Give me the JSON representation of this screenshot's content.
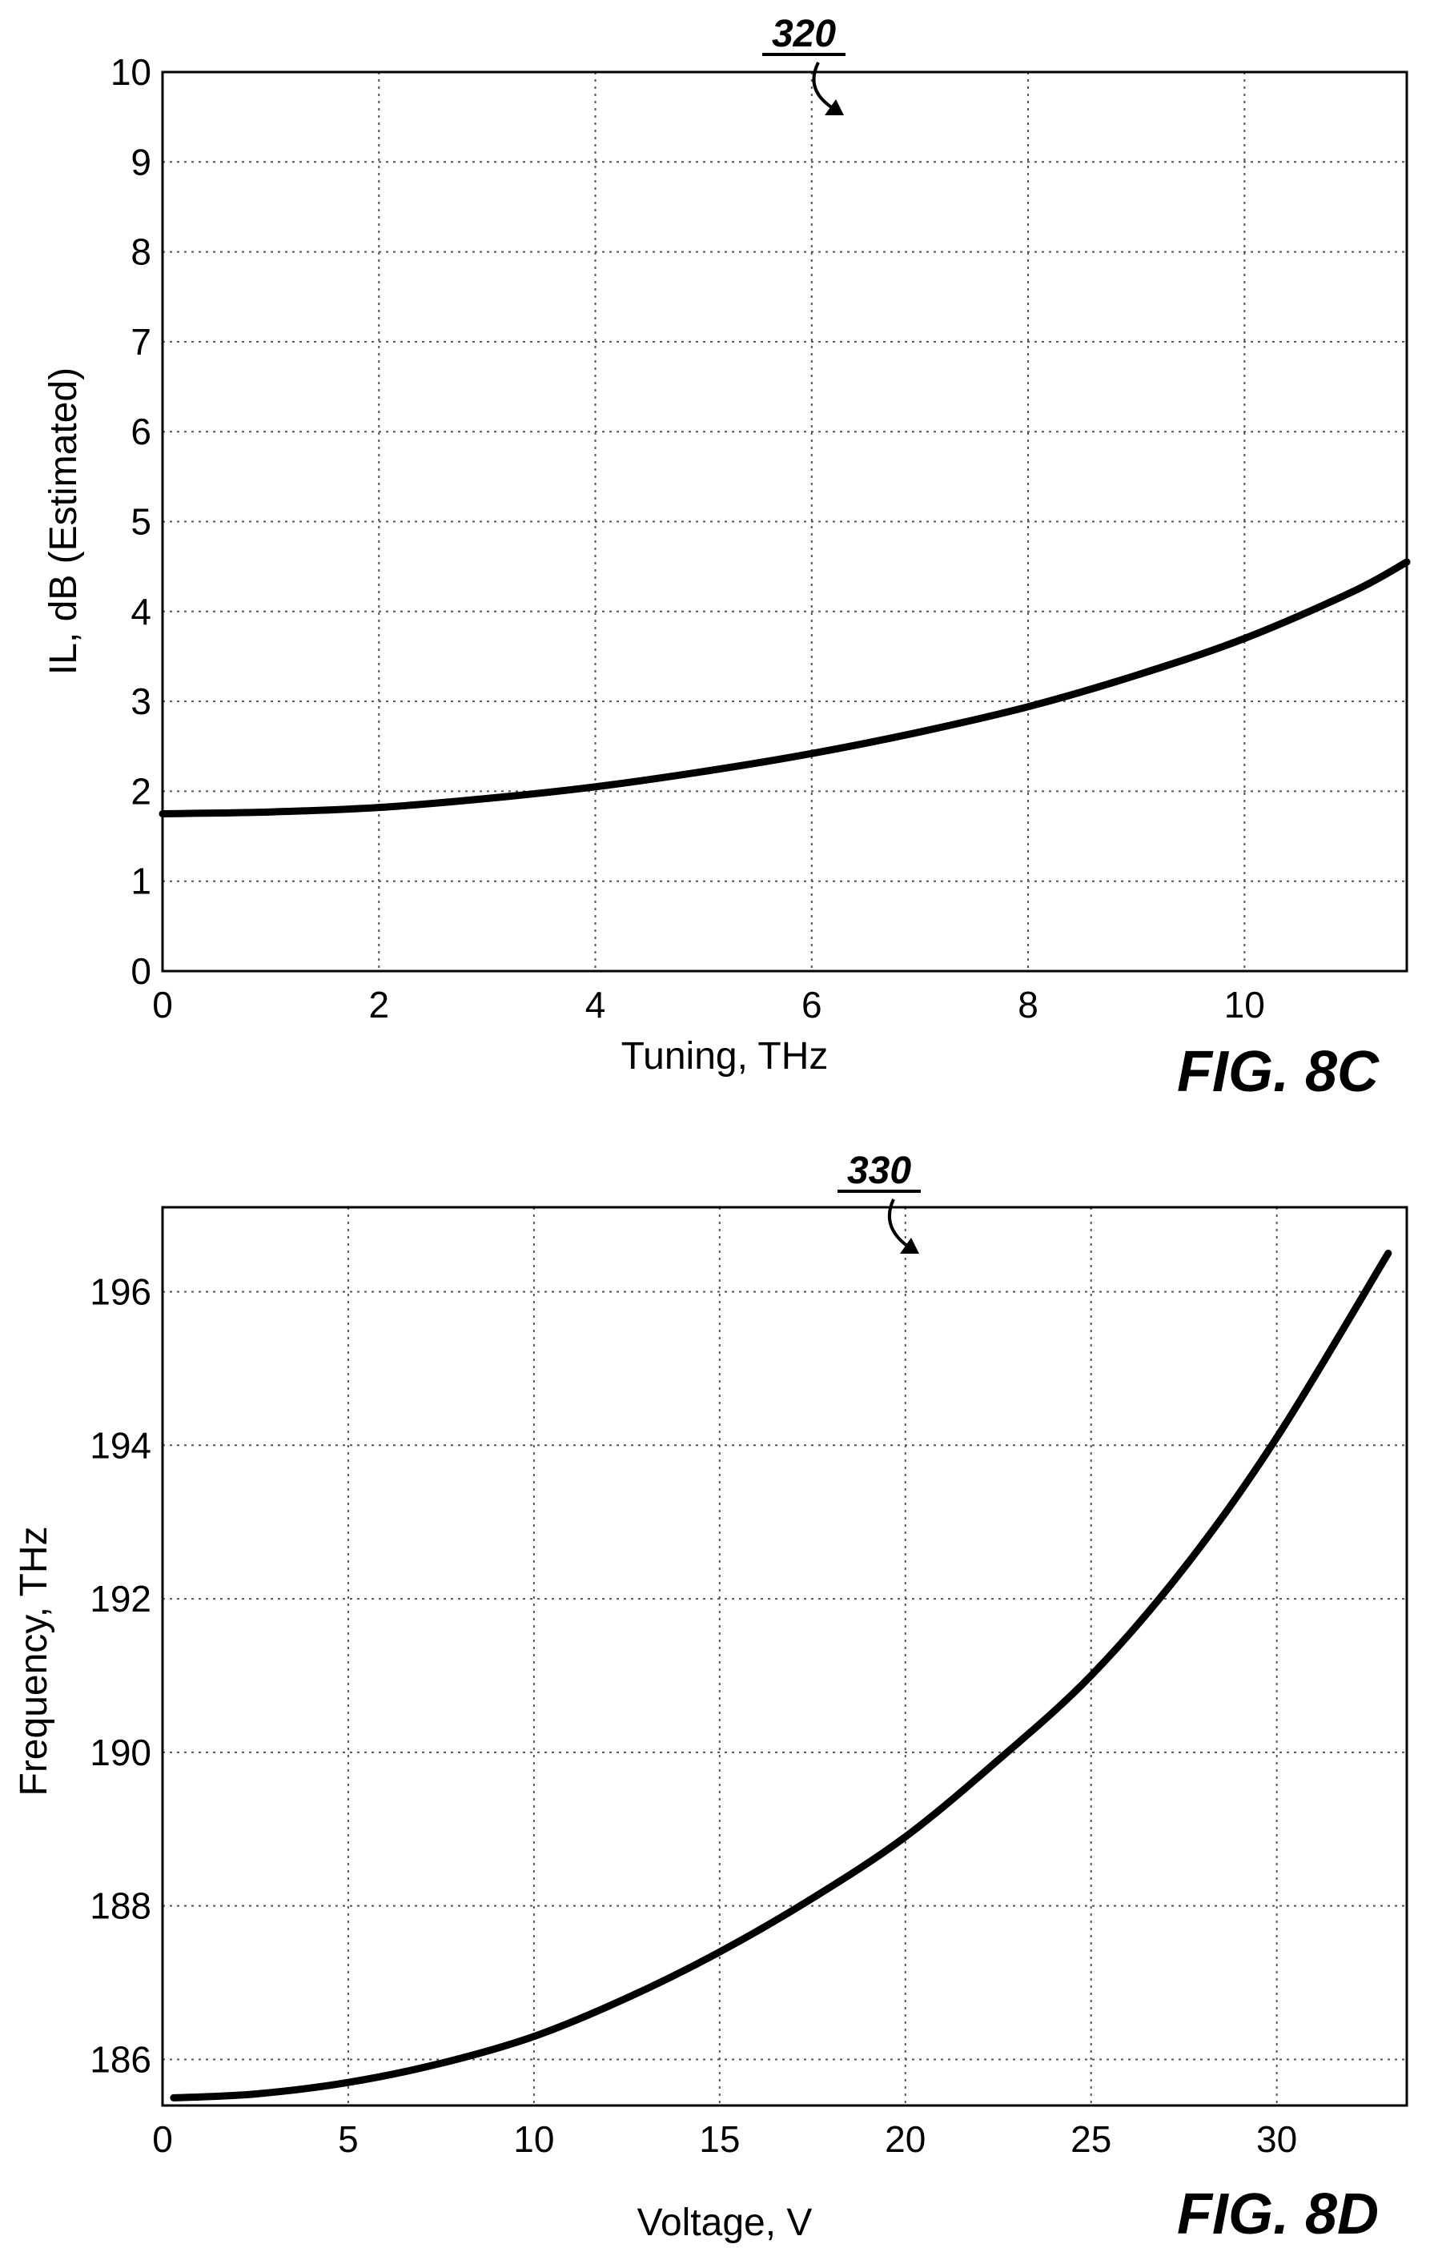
{
  "chart_data": [
    {
      "type": "line",
      "figure_label": "FIG. 8C",
      "reference_numeral": "320",
      "xlabel": "Tuning, THz",
      "ylabel": "IL, dB (Estimated)",
      "xlim": [
        0,
        11.5
      ],
      "ylim": [
        0,
        10
      ],
      "x_ticks": [
        "0",
        "2",
        "4",
        "6",
        "8",
        "10"
      ],
      "y_ticks": [
        "0",
        "1",
        "2",
        "3",
        "4",
        "5",
        "6",
        "7",
        "8",
        "9",
        "10"
      ],
      "grid": true,
      "series": [
        {
          "x": [
            0,
            1,
            2,
            3,
            4,
            5,
            6,
            7,
            8,
            9,
            10,
            11,
            11.5
          ],
          "y": [
            1.75,
            1.77,
            1.82,
            1.92,
            2.05,
            2.22,
            2.42,
            2.66,
            2.94,
            3.29,
            3.7,
            4.22,
            4.55
          ]
        }
      ]
    },
    {
      "type": "line",
      "figure_label": "FIG. 8D",
      "reference_numeral": "330",
      "xlabel": "Voltage, V",
      "ylabel": "Frequency, THz",
      "xlim": [
        0,
        33.5
      ],
      "ylim": [
        185.4,
        197.1
      ],
      "x_ticks": [
        "0",
        "5",
        "10",
        "15",
        "20",
        "25",
        "30"
      ],
      "y_ticks": [
        "186",
        "188",
        "190",
        "192",
        "194",
        "196"
      ],
      "grid": true,
      "series": [
        {
          "x": [
            0.3,
            2.5,
            5,
            7.5,
            10,
            12.5,
            15,
            17.5,
            20,
            22.5,
            25,
            27.5,
            30,
            33
          ],
          "y": [
            185.5,
            185.55,
            185.7,
            185.95,
            186.3,
            186.8,
            187.4,
            188.1,
            188.9,
            189.9,
            191.0,
            192.4,
            194.1,
            196.5
          ]
        }
      ]
    }
  ]
}
